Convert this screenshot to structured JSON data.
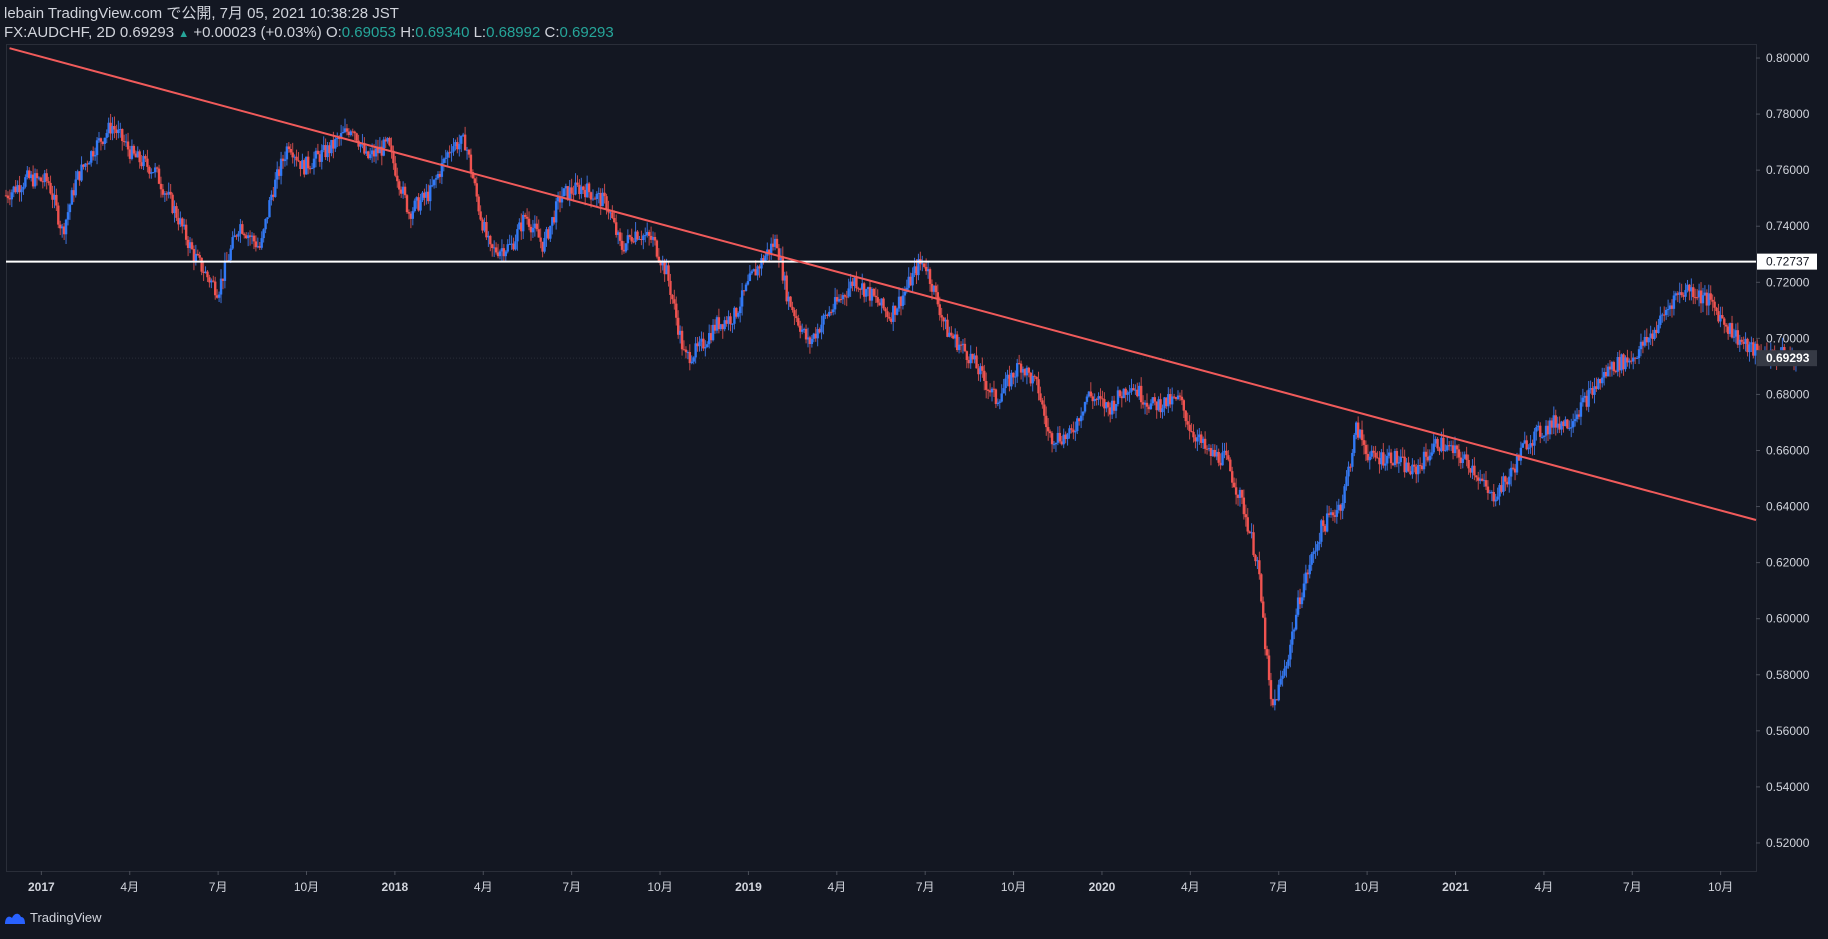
{
  "header": {
    "publish_line": "lebain TradingView.com で公開, 7月 05, 2021 10:38:28 JST",
    "symbol": "FX:AUDCHF, 2D",
    "last": "0.69293",
    "change": "+0.00023 (+0.03%)",
    "o_label": "O:",
    "o_value": "0.69053",
    "h_label": "H:",
    "h_value": "0.69340",
    "l_label": "L:",
    "l_value": "0.68992",
    "c_label": "C:",
    "c_value": "0.69293"
  },
  "footer": {
    "brand": "TradingView"
  },
  "colors": {
    "background": "#131722",
    "up": "#2962ff",
    "up_body": "#3179f5",
    "down": "#ef5350",
    "trendline": "#f15b5b",
    "hline": "#ffffff",
    "text": "#d1d4dc",
    "axis": "#2a2e39"
  },
  "price_axis": {
    "labels": [
      "0.80000",
      "0.78000",
      "0.76000",
      "0.74000",
      "0.72000",
      "0.70000",
      "0.68000",
      "0.66000",
      "0.64000",
      "0.62000",
      "0.60000",
      "0.58000",
      "0.56000",
      "0.54000",
      "0.52000"
    ],
    "horizontal_line_label": "0.72737",
    "last_price_label": "0.69293"
  },
  "time_axis": {
    "labels": [
      "2017",
      "4月",
      "7月",
      "10月",
      "2018",
      "4月",
      "7月",
      "10月",
      "2019",
      "4月",
      "7月",
      "10月",
      "2020",
      "4月",
      "7月",
      "10月",
      "2021",
      "4月",
      "7月",
      "10月"
    ]
  },
  "chart_data": {
    "type": "candlestick",
    "symbol": "FX:AUDCHF",
    "interval": "2D",
    "ylim": [
      0.51,
      0.805
    ],
    "x_range": [
      2016.9,
      2021.85
    ],
    "grid": false,
    "horizontal_level": 0.72737,
    "trendline": {
      "from": [
        2016.91,
        0.8035
      ],
      "to": [
        2021.85,
        0.6352
      ]
    },
    "price_path": [
      [
        2016.9,
        0.751
      ],
      [
        2016.96,
        0.757
      ],
      [
        2017.02,
        0.756
      ],
      [
        2017.06,
        0.738
      ],
      [
        2017.1,
        0.757
      ],
      [
        2017.15,
        0.768
      ],
      [
        2017.2,
        0.776
      ],
      [
        2017.26,
        0.765
      ],
      [
        2017.32,
        0.76
      ],
      [
        2017.38,
        0.745
      ],
      [
        2017.43,
        0.73
      ],
      [
        2017.47,
        0.722
      ],
      [
        2017.5,
        0.717
      ],
      [
        2017.56,
        0.741
      ],
      [
        2017.62,
        0.732
      ],
      [
        2017.65,
        0.751
      ],
      [
        2017.7,
        0.77
      ],
      [
        2017.74,
        0.761
      ],
      [
        2017.82,
        0.768
      ],
      [
        2017.88,
        0.776
      ],
      [
        2017.92,
        0.764
      ],
      [
        2017.98,
        0.769
      ],
      [
        2018.04,
        0.745
      ],
      [
        2018.1,
        0.752
      ],
      [
        2018.16,
        0.769
      ],
      [
        2018.2,
        0.77
      ],
      [
        2018.24,
        0.745
      ],
      [
        2018.27,
        0.731
      ],
      [
        2018.33,
        0.733
      ],
      [
        2018.37,
        0.744
      ],
      [
        2018.42,
        0.733
      ],
      [
        2018.47,
        0.751
      ],
      [
        2018.53,
        0.754
      ],
      [
        2018.6,
        0.748
      ],
      [
        2018.64,
        0.732
      ],
      [
        2018.68,
        0.738
      ],
      [
        2018.73,
        0.735
      ],
      [
        2018.77,
        0.723
      ],
      [
        2018.82,
        0.693
      ],
      [
        2018.86,
        0.696
      ],
      [
        2018.91,
        0.705
      ],
      [
        2018.96,
        0.708
      ],
      [
        2019.01,
        0.722
      ],
      [
        2019.06,
        0.732
      ],
      [
        2019.08,
        0.735
      ],
      [
        2019.11,
        0.715
      ],
      [
        2019.17,
        0.698
      ],
      [
        2019.22,
        0.708
      ],
      [
        2019.26,
        0.714
      ],
      [
        2019.3,
        0.721
      ],
      [
        2019.35,
        0.715
      ],
      [
        2019.4,
        0.708
      ],
      [
        2019.44,
        0.716
      ],
      [
        2019.48,
        0.726
      ],
      [
        2019.5,
        0.727
      ],
      [
        2019.56,
        0.703
      ],
      [
        2019.63,
        0.693
      ],
      [
        2019.7,
        0.678
      ],
      [
        2019.77,
        0.691
      ],
      [
        2019.82,
        0.682
      ],
      [
        2019.85,
        0.665
      ],
      [
        2019.91,
        0.665
      ],
      [
        2019.96,
        0.68
      ],
      [
        2020.02,
        0.675
      ],
      [
        2020.08,
        0.684
      ],
      [
        2020.14,
        0.676
      ],
      [
        2020.22,
        0.678
      ],
      [
        2020.25,
        0.668
      ],
      [
        2020.3,
        0.659
      ],
      [
        2020.35,
        0.657
      ],
      [
        2020.4,
        0.64
      ],
      [
        2020.44,
        0.62
      ],
      [
        2020.48,
        0.567
      ],
      [
        2020.52,
        0.583
      ],
      [
        2020.56,
        0.608
      ],
      [
        2020.62,
        0.632
      ],
      [
        2020.68,
        0.642
      ],
      [
        2020.72,
        0.668
      ],
      [
        2020.76,
        0.657
      ],
      [
        2020.82,
        0.658
      ],
      [
        2020.88,
        0.652
      ],
      [
        2020.95,
        0.663
      ],
      [
        2021.0,
        0.659
      ],
      [
        2021.05,
        0.654
      ],
      [
        2021.1,
        0.643
      ],
      [
        2021.15,
        0.65
      ],
      [
        2021.2,
        0.663
      ],
      [
        2021.28,
        0.67
      ],
      [
        2021.32,
        0.67
      ],
      [
        2021.38,
        0.68
      ],
      [
        2021.44,
        0.69
      ],
      [
        2021.5,
        0.693
      ],
      [
        2021.56,
        0.702
      ],
      [
        2021.62,
        0.715
      ],
      [
        2021.66,
        0.718
      ],
      [
        2021.72,
        0.713
      ],
      [
        2021.76,
        0.706
      ],
      [
        2021.82,
        0.697
      ],
      [
        2021.88,
        0.694
      ],
      [
        2021.93,
        0.694
      ],
      [
        2021.97,
        0.6929
      ]
    ]
  }
}
